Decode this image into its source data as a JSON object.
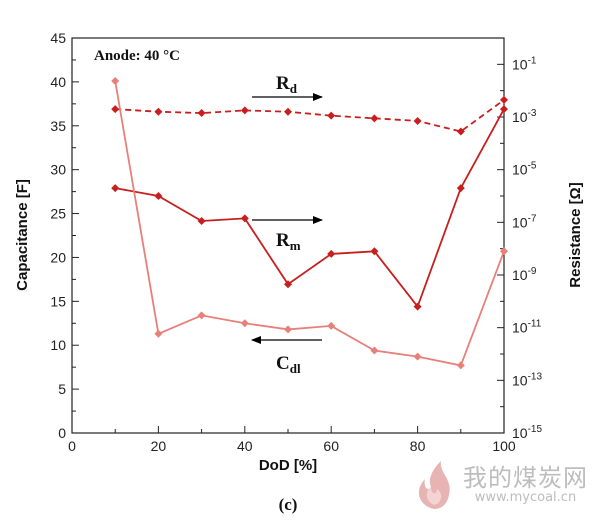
{
  "chart_data": {
    "type": "line",
    "annotation": "Anode: 40 °C",
    "panel_label": "(c)",
    "xlabel": "DoD [%]",
    "ylabel_left": "Capacitance [F]",
    "ylabel_right": "Resistance [Ω]",
    "xlim": [
      0,
      100
    ],
    "xticks": [
      0,
      20,
      40,
      60,
      80,
      100
    ],
    "ylim_left": [
      0,
      45
    ],
    "yticks_left": [
      0,
      5,
      10,
      15,
      20,
      25,
      30,
      35,
      40,
      45
    ],
    "right_axis_scale": "log",
    "ylim_right_exponent": [
      -15,
      0
    ],
    "yticks_right_exponent": [
      -15,
      -13,
      -11,
      -9,
      -7,
      -5,
      -3,
      -1
    ],
    "yticks_right_base": "10",
    "x": [
      10,
      20,
      30,
      40,
      50,
      60,
      70,
      80,
      90,
      100
    ],
    "series": [
      {
        "key": "Rd",
        "label_main": "R",
        "label_sub": "d",
        "axis": "right",
        "style": "dashed",
        "color": "#c81e1e",
        "log10_values": [
          -2.7,
          -2.8,
          -2.85,
          -2.75,
          -2.8,
          -2.95,
          -3.05,
          -3.15,
          -3.55,
          -2.35
        ]
      },
      {
        "key": "Rm",
        "label_main": "R",
        "label_sub": "m",
        "axis": "right",
        "style": "solid",
        "color": "#c81e1e",
        "log10_values": [
          -5.7,
          -6.0,
          -6.95,
          -6.85,
          -9.35,
          -8.2,
          -8.1,
          -10.2,
          -5.7,
          -2.7
        ]
      },
      {
        "key": "Cdl",
        "label_main": "C",
        "label_sub": "dl",
        "axis": "left",
        "style": "solid",
        "color": "#e8807a",
        "values": [
          40.1,
          11.3,
          13.4,
          12.5,
          11.8,
          12.2,
          9.4,
          8.7,
          7.7,
          20.7
        ]
      }
    ],
    "arrows": [
      {
        "series": "Rd",
        "direction": "right"
      },
      {
        "series": "Rm",
        "direction": "right"
      },
      {
        "series": "Cdl",
        "direction": "left"
      }
    ],
    "grid": false
  },
  "watermark": {
    "text": "我的煤炭网",
    "url": "www.mycoal.cn"
  }
}
